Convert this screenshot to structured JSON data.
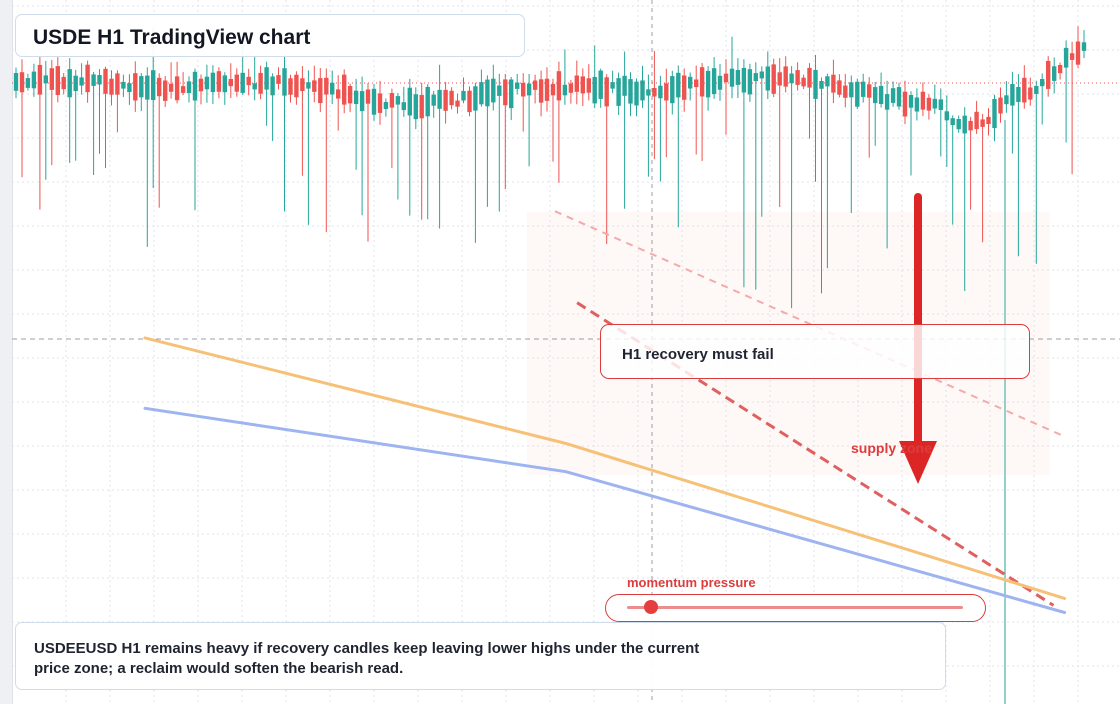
{
  "title": "USDE H1 TradingView chart",
  "callout": {
    "text": "H1 recovery must fail"
  },
  "zone_label": "supply zone",
  "momentum": {
    "label": "momentum pressure",
    "level": 0.07
  },
  "note": {
    "text": "USDEEUSD H1 remains heavy if recovery candles keep leaving lower highs under the current price zone; a reclaim would soften the bearish read."
  },
  "colors": {
    "up": "#26a69a",
    "down": "#ef5350",
    "accent_red": "#dc3c3c",
    "ma_fast": "#f6c177",
    "ma_slow": "#9db4f0",
    "grid": "#e0e3eb",
    "background": "#ffffff"
  },
  "icons": {
    "arrow": "down-arrow-icon"
  },
  "chart_data": {
    "type": "candlestick",
    "timeframe": "H1",
    "title": "USDE H1 TradingView chart",
    "xlabel": "",
    "ylabel": "",
    "ylim": [
      0,
      1
    ],
    "grid": true,
    "candle_count": 180,
    "seed": 7,
    "series": [
      {
        "name": "",
        "kind": "moving-average",
        "x": [
          0.12,
          0.5,
          0.95
        ],
        "y": [
          0.52,
          0.37,
          0.15
        ]
      },
      {
        "name": "",
        "kind": "moving-average",
        "x": [
          0.12,
          0.5,
          0.95
        ],
        "y": [
          0.42,
          0.33,
          0.13
        ]
      }
    ],
    "resistance_lines": [
      {
        "style": "dashed",
        "x": [
          0.49,
          0.95
        ],
        "y": [
          0.7,
          0.38
        ]
      },
      {
        "style": "dashed",
        "x": [
          0.51,
          0.94
        ],
        "y": [
          0.57,
          0.14
        ]
      }
    ],
    "annotations": [
      "H1 recovery must fail",
      "supply zone",
      "momentum pressure"
    ]
  }
}
